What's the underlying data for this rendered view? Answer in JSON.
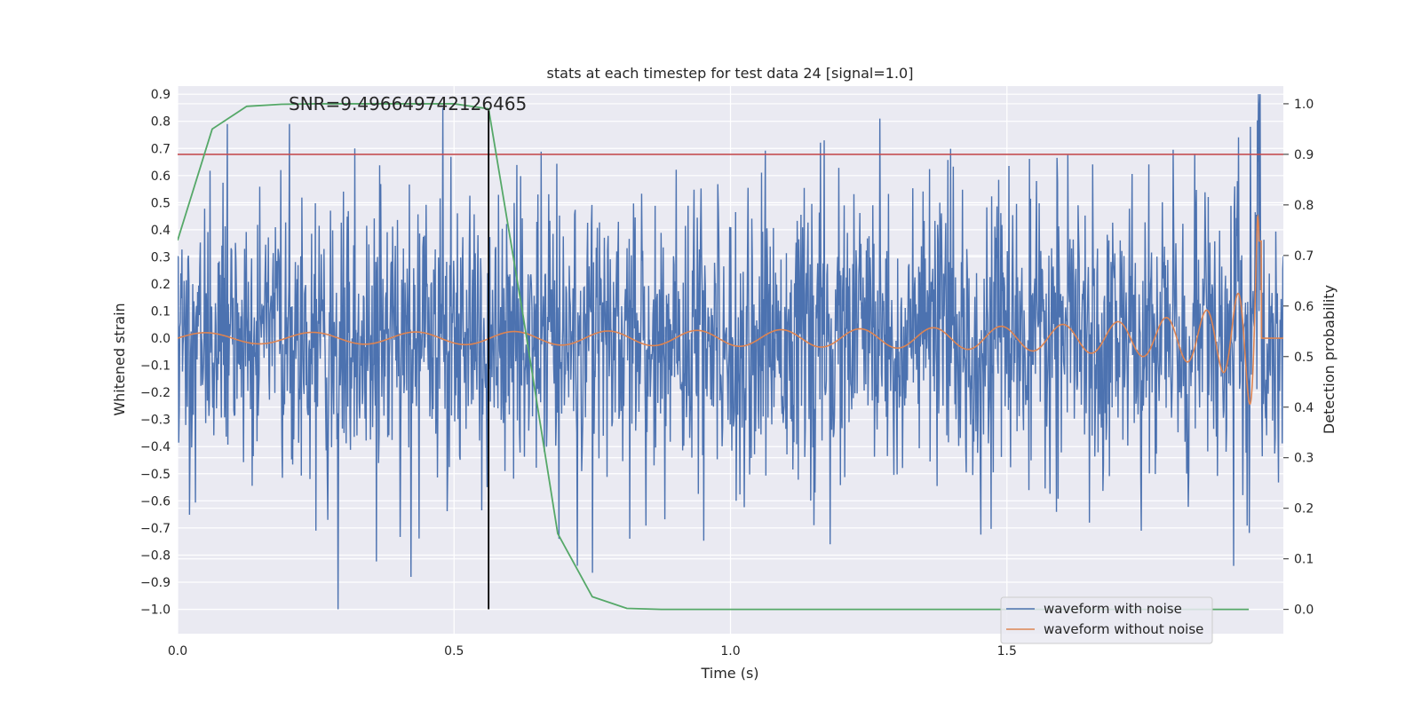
{
  "chart_data": {
    "type": "line",
    "title": "stats at each timestep for test data 24 [signal=1.0]",
    "xlabel": "Time (s)",
    "ylabel": "Whitened strain",
    "ylabel_right": "Detection probability",
    "annotation": "SNR=9.496649742126465",
    "xlim": [
      0,
      2.0
    ],
    "ylim": [
      -1.09,
      0.93
    ],
    "ylim_right": [
      -0.048,
      1.035
    ],
    "x_ticks": [
      0.0,
      0.5,
      1.0,
      1.5
    ],
    "x_tick_labels": [
      "0.0",
      "0.5",
      "1.0",
      "1.5"
    ],
    "y_ticks": [
      -1.0,
      -0.9,
      -0.8,
      -0.7,
      -0.6,
      -0.5,
      -0.4,
      -0.3,
      -0.2,
      -0.1,
      0.0,
      0.1,
      0.2,
      0.3,
      0.4,
      0.5,
      0.6,
      0.7,
      0.8,
      0.9
    ],
    "y_tick_labels": [
      "−1.0",
      "−0.9",
      "−0.8",
      "−0.7",
      "−0.6",
      "−0.5",
      "−0.4",
      "−0.3",
      "−0.2",
      "−0.1",
      "0.0",
      "0.1",
      "0.2",
      "0.3",
      "0.4",
      "0.5",
      "0.6",
      "0.7",
      "0.8",
      "0.9"
    ],
    "y_right_ticks": [
      0.0,
      0.1,
      0.2,
      0.3,
      0.4,
      0.5,
      0.6,
      0.7,
      0.8,
      0.9,
      1.0
    ],
    "y_right_tick_labels": [
      "0.0",
      "0.1",
      "0.2",
      "0.3",
      "0.4",
      "0.5",
      "0.6",
      "0.7",
      "0.8",
      "0.9",
      "1.0"
    ],
    "grid": true,
    "legend_position": "lower-right",
    "series": [
      {
        "name": "waveform with noise",
        "color": "#4c72b0",
        "axis": "left",
        "samples": 2048,
        "noise_std": 0.25,
        "spikes": [
          {
            "t": 0.09,
            "y": 0.79
          },
          {
            "t": 0.29,
            "y": -1.0
          },
          {
            "t": 0.32,
            "y": 0.7
          },
          {
            "t": 0.48,
            "y": 0.85
          },
          {
            "t": 0.25,
            "y": -0.71
          },
          {
            "t": 0.69,
            "y": -0.74
          },
          {
            "t": 1.27,
            "y": 0.81
          },
          {
            "t": 1.18,
            "y": -0.76
          },
          {
            "t": 1.91,
            "y": -0.84
          },
          {
            "t": 1.94,
            "y": 0.78
          },
          {
            "t": 1.17,
            "y": 0.73
          },
          {
            "t": 1.84,
            "y": 0.68
          }
        ]
      },
      {
        "name": "waveform without noise",
        "color": "#dd8452",
        "axis": "left",
        "chirp": {
          "t_start": 0.0,
          "t_merge": 1.96,
          "amp_start": 0.02,
          "amp_peak": 0.45,
          "freq_start": 5.0,
          "freq_peak": 60.0
        }
      },
      {
        "name": "",
        "color": "#55a868",
        "axis": "right",
        "x": [
          0.0,
          0.0625,
          0.125,
          0.1875,
          0.25,
          0.3125,
          0.375,
          0.4375,
          0.5,
          0.5625,
          0.625,
          0.6875,
          0.75,
          0.8125,
          0.875,
          0.9375,
          1.0,
          1.0625,
          1.125,
          1.1875,
          1.25,
          1.3125,
          1.375,
          1.4375,
          1.5,
          1.5625,
          1.625,
          1.6875,
          1.75,
          1.8125,
          1.875,
          1.9375
        ],
        "y": [
          0.73,
          0.95,
          0.995,
          0.999,
          1.0,
          1.0,
          1.0,
          1.0,
          1.0,
          0.99,
          0.58,
          0.15,
          0.025,
          0.002,
          0.0,
          0.0,
          0.0,
          0.0,
          0.0,
          0.0,
          0.0,
          0.0,
          0.0,
          0.0,
          0.0,
          0.0,
          0.0,
          0.0,
          0.0,
          0.0,
          0.0,
          0.0
        ]
      }
    ],
    "threshold": {
      "axis": "right",
      "value": 0.9,
      "color": "#c44e52"
    },
    "vline": {
      "x": 0.5625,
      "y_from": -1.0,
      "y_to": 0.84,
      "color": "#000000"
    }
  }
}
